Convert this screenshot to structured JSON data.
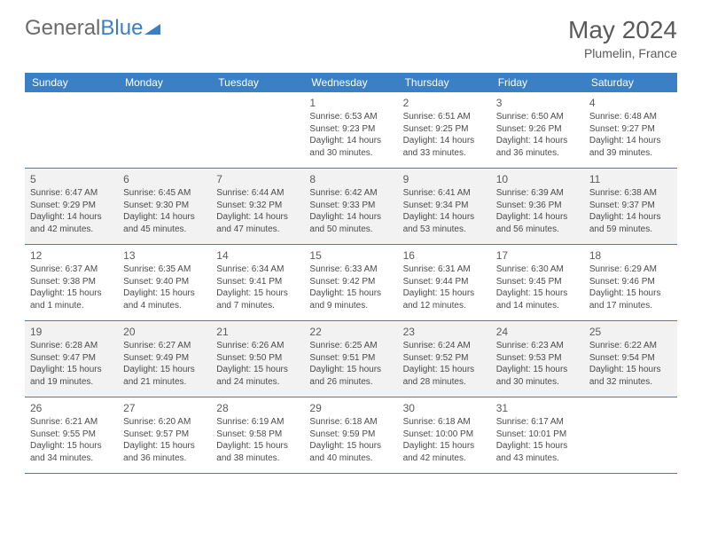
{
  "logo": {
    "part1": "General",
    "part2": "Blue"
  },
  "title": {
    "month": "May 2024",
    "location": "Plumelin, France"
  },
  "colors": {
    "header_bg": "#3b7fc4",
    "header_text": "#ffffff",
    "text": "#4a4a4a",
    "dim_bg": "#f2f2f2",
    "border": "#3b7fc4",
    "logo_gray": "#6b6b6b",
    "logo_blue": "#3b7fc4"
  },
  "dayHeaders": [
    "Sunday",
    "Monday",
    "Tuesday",
    "Wednesday",
    "Thursday",
    "Friday",
    "Saturday"
  ],
  "weeks": [
    [
      {
        "blank": true
      },
      {
        "blank": true
      },
      {
        "blank": true
      },
      {
        "n": "1",
        "sr": "6:53 AM",
        "ss": "9:23 PM",
        "dl": "14 hours and 30 minutes."
      },
      {
        "n": "2",
        "sr": "6:51 AM",
        "ss": "9:25 PM",
        "dl": "14 hours and 33 minutes."
      },
      {
        "n": "3",
        "sr": "6:50 AM",
        "ss": "9:26 PM",
        "dl": "14 hours and 36 minutes."
      },
      {
        "n": "4",
        "sr": "6:48 AM",
        "ss": "9:27 PM",
        "dl": "14 hours and 39 minutes."
      }
    ],
    [
      {
        "n": "5",
        "dim": true,
        "sr": "6:47 AM",
        "ss": "9:29 PM",
        "dl": "14 hours and 42 minutes."
      },
      {
        "n": "6",
        "dim": true,
        "sr": "6:45 AM",
        "ss": "9:30 PM",
        "dl": "14 hours and 45 minutes."
      },
      {
        "n": "7",
        "dim": true,
        "sr": "6:44 AM",
        "ss": "9:32 PM",
        "dl": "14 hours and 47 minutes."
      },
      {
        "n": "8",
        "dim": true,
        "sr": "6:42 AM",
        "ss": "9:33 PM",
        "dl": "14 hours and 50 minutes."
      },
      {
        "n": "9",
        "dim": true,
        "sr": "6:41 AM",
        "ss": "9:34 PM",
        "dl": "14 hours and 53 minutes."
      },
      {
        "n": "10",
        "dim": true,
        "sr": "6:39 AM",
        "ss": "9:36 PM",
        "dl": "14 hours and 56 minutes."
      },
      {
        "n": "11",
        "dim": true,
        "sr": "6:38 AM",
        "ss": "9:37 PM",
        "dl": "14 hours and 59 minutes."
      }
    ],
    [
      {
        "n": "12",
        "sr": "6:37 AM",
        "ss": "9:38 PM",
        "dl": "15 hours and 1 minute."
      },
      {
        "n": "13",
        "sr": "6:35 AM",
        "ss": "9:40 PM",
        "dl": "15 hours and 4 minutes."
      },
      {
        "n": "14",
        "sr": "6:34 AM",
        "ss": "9:41 PM",
        "dl": "15 hours and 7 minutes."
      },
      {
        "n": "15",
        "sr": "6:33 AM",
        "ss": "9:42 PM",
        "dl": "15 hours and 9 minutes."
      },
      {
        "n": "16",
        "sr": "6:31 AM",
        "ss": "9:44 PM",
        "dl": "15 hours and 12 minutes."
      },
      {
        "n": "17",
        "sr": "6:30 AM",
        "ss": "9:45 PM",
        "dl": "15 hours and 14 minutes."
      },
      {
        "n": "18",
        "sr": "6:29 AM",
        "ss": "9:46 PM",
        "dl": "15 hours and 17 minutes."
      }
    ],
    [
      {
        "n": "19",
        "dim": true,
        "sr": "6:28 AM",
        "ss": "9:47 PM",
        "dl": "15 hours and 19 minutes."
      },
      {
        "n": "20",
        "dim": true,
        "sr": "6:27 AM",
        "ss": "9:49 PM",
        "dl": "15 hours and 21 minutes."
      },
      {
        "n": "21",
        "dim": true,
        "sr": "6:26 AM",
        "ss": "9:50 PM",
        "dl": "15 hours and 24 minutes."
      },
      {
        "n": "22",
        "dim": true,
        "sr": "6:25 AM",
        "ss": "9:51 PM",
        "dl": "15 hours and 26 minutes."
      },
      {
        "n": "23",
        "dim": true,
        "sr": "6:24 AM",
        "ss": "9:52 PM",
        "dl": "15 hours and 28 minutes."
      },
      {
        "n": "24",
        "dim": true,
        "sr": "6:23 AM",
        "ss": "9:53 PM",
        "dl": "15 hours and 30 minutes."
      },
      {
        "n": "25",
        "dim": true,
        "sr": "6:22 AM",
        "ss": "9:54 PM",
        "dl": "15 hours and 32 minutes."
      }
    ],
    [
      {
        "n": "26",
        "sr": "6:21 AM",
        "ss": "9:55 PM",
        "dl": "15 hours and 34 minutes."
      },
      {
        "n": "27",
        "sr": "6:20 AM",
        "ss": "9:57 PM",
        "dl": "15 hours and 36 minutes."
      },
      {
        "n": "28",
        "sr": "6:19 AM",
        "ss": "9:58 PM",
        "dl": "15 hours and 38 minutes."
      },
      {
        "n": "29",
        "sr": "6:18 AM",
        "ss": "9:59 PM",
        "dl": "15 hours and 40 minutes."
      },
      {
        "n": "30",
        "sr": "6:18 AM",
        "ss": "10:00 PM",
        "dl": "15 hours and 42 minutes."
      },
      {
        "n": "31",
        "sr": "6:17 AM",
        "ss": "10:01 PM",
        "dl": "15 hours and 43 minutes."
      },
      {
        "blank": true
      }
    ]
  ],
  "labels": {
    "sunrise": "Sunrise: ",
    "sunset": "Sunset: ",
    "daylight": "Daylight: "
  }
}
